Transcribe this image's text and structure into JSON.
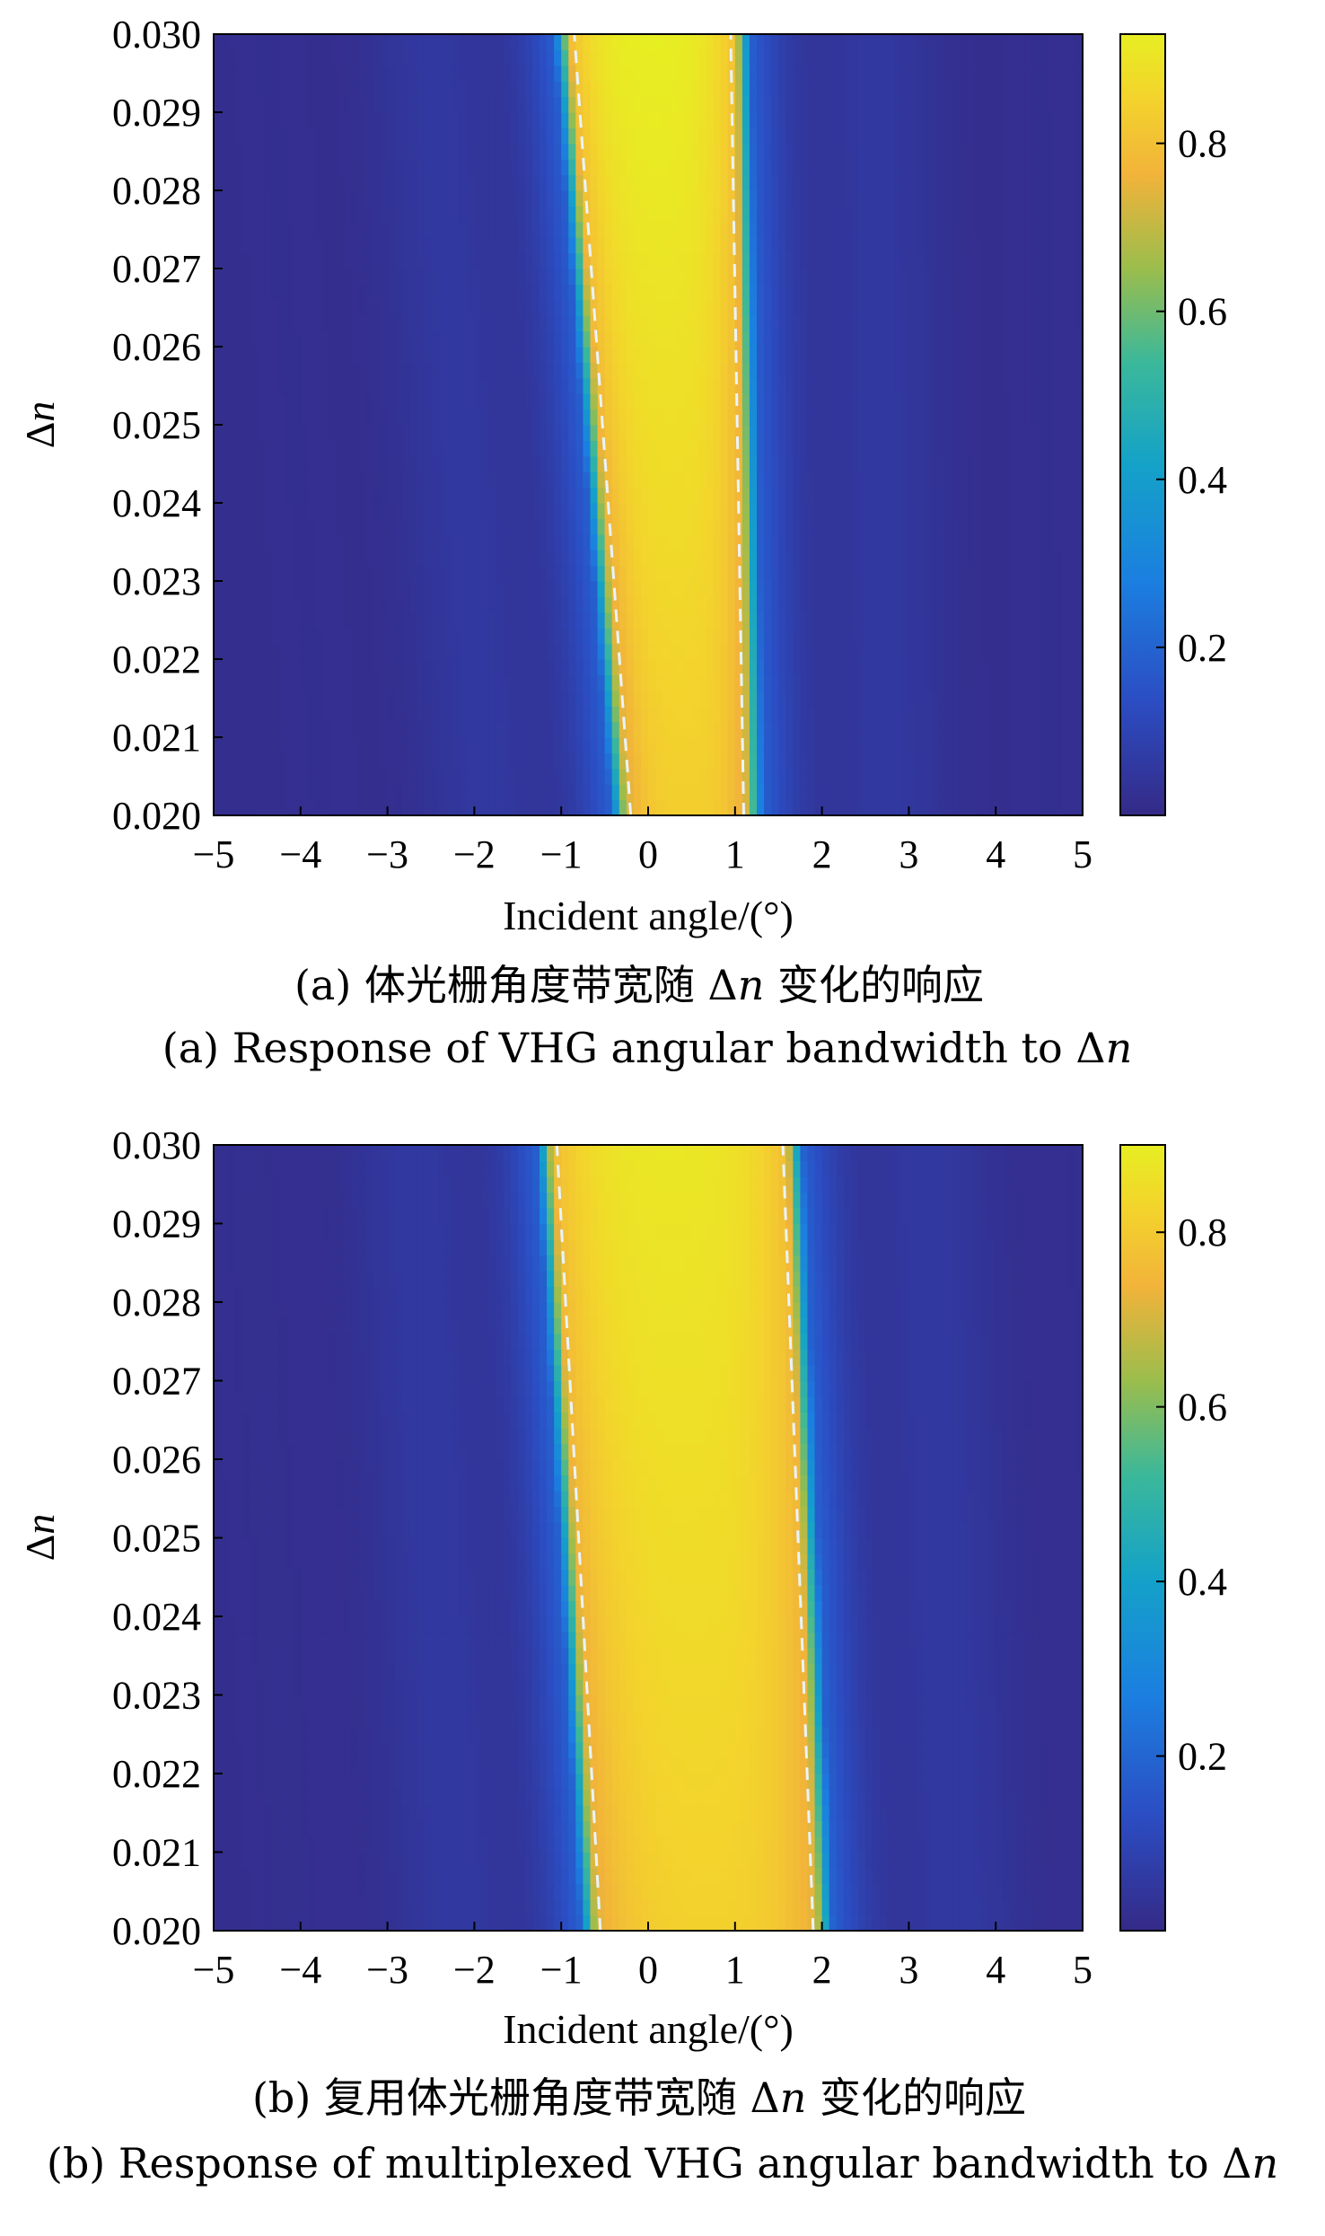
{
  "chart_data": [
    {
      "type": "heatmap",
      "panel": "a",
      "xlabel": "Incident angle/(°)",
      "ylabel_prefix": "Δ",
      "ylabel_var": "n",
      "xlim": [
        -5,
        5
      ],
      "ylim": [
        0.02,
        0.03
      ],
      "x_ticks": [
        "−5",
        "−4",
        "−3",
        "−2",
        "−1",
        "0",
        "1",
        "2",
        "3",
        "4",
        "5"
      ],
      "y_ticks": [
        "0.020",
        "0.021",
        "0.022",
        "0.023",
        "0.024",
        "0.025",
        "0.026",
        "0.027",
        "0.028",
        "0.029",
        "0.030"
      ],
      "colorbar": {
        "range": [
          0,
          0.93
        ],
        "ticks": [
          0.2,
          0.4,
          0.6,
          0.8
        ],
        "tick_labels": [
          "0.2",
          "0.4",
          "0.6",
          "0.8"
        ]
      },
      "band": {
        "dn": [
          0.02,
          0.03
        ],
        "left_edge": [
          -0.2,
          -0.85
        ],
        "right_edge": [
          1.1,
          0.95
        ],
        "peak": [
          0.84,
          0.93
        ]
      },
      "dashed_lines": [
        {
          "x": [
            -0.2,
            -0.85
          ],
          "y": [
            0.02,
            0.03
          ]
        },
        {
          "x": [
            1.1,
            0.95
          ],
          "y": [
            0.02,
            0.03
          ]
        }
      ],
      "caption_cn_prefix": "(a) 体光栅角度带宽随 Δ",
      "caption_cn_var": "n",
      "caption_cn_suffix": " 变化的响应",
      "caption_en_prefix": "(a) Response of VHG angular bandwidth to Δ",
      "caption_en_var": "n"
    },
    {
      "type": "heatmap",
      "panel": "b",
      "xlabel": "Incident angle/(°)",
      "ylabel_prefix": "Δ",
      "ylabel_var": "n",
      "xlim": [
        -5,
        5
      ],
      "ylim": [
        0.02,
        0.03
      ],
      "x_ticks": [
        "−5",
        "−4",
        "−3",
        "−2",
        "−1",
        "0",
        "1",
        "2",
        "3",
        "4",
        "5"
      ],
      "y_ticks": [
        "0.020",
        "0.021",
        "0.022",
        "0.023",
        "0.024",
        "0.025",
        "0.026",
        "0.027",
        "0.028",
        "0.029",
        "0.030"
      ],
      "colorbar": {
        "range": [
          0,
          0.9
        ],
        "ticks": [
          0.2,
          0.4,
          0.6,
          0.8
        ],
        "tick_labels": [
          "0.2",
          "0.4",
          "0.6",
          "0.8"
        ]
      },
      "band": {
        "dn": [
          0.02,
          0.03
        ],
        "left_edge": [
          -0.55,
          -1.05
        ],
        "right_edge": [
          1.9,
          1.55
        ],
        "peak": [
          0.82,
          0.88
        ]
      },
      "dashed_lines": [
        {
          "x": [
            -0.55,
            -1.05
          ],
          "y": [
            0.02,
            0.03
          ]
        },
        {
          "x": [
            1.9,
            1.55
          ],
          "y": [
            0.02,
            0.03
          ]
        }
      ],
      "caption_cn_prefix": "(b) 复用体光栅角度带宽随 Δ",
      "caption_cn_var": "n",
      "caption_cn_suffix": " 变化的响应",
      "caption_en_prefix": "(b) Response of multiplexed VHG angular bandwidth to Δ",
      "caption_en_var": "n"
    }
  ]
}
